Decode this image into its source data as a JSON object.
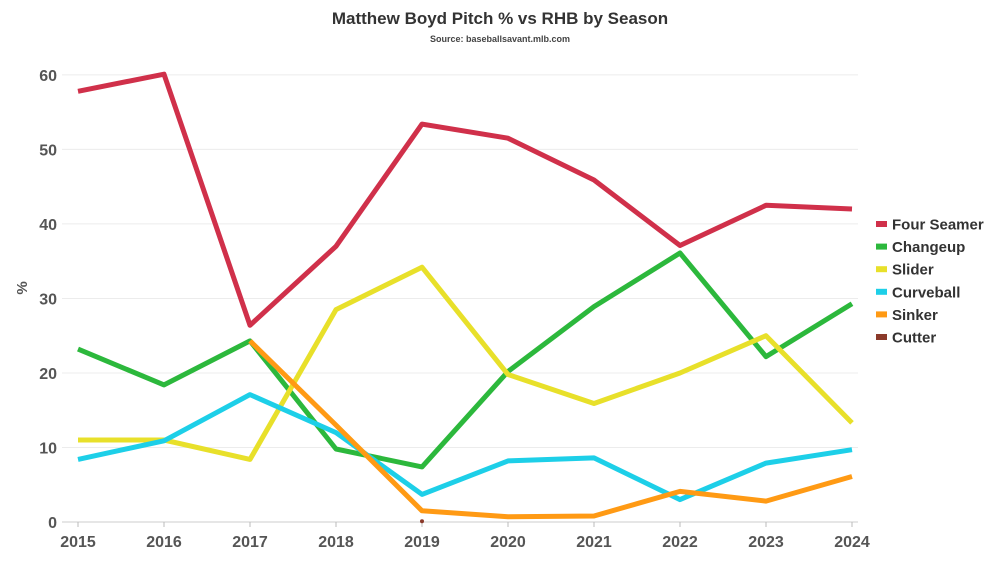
{
  "chart_data": {
    "type": "line",
    "title": "Matthew Boyd Pitch % vs RHB by Season",
    "subtitle": "Source: baseballsavant.mlb.com",
    "xlabel": "",
    "ylabel": "%",
    "x": [
      "2015",
      "2016",
      "2017",
      "2018",
      "2019",
      "2020",
      "2021",
      "2022",
      "2023",
      "2024"
    ],
    "ylim": [
      0,
      62
    ],
    "yticks": [
      0,
      10,
      20,
      30,
      40,
      50,
      60
    ],
    "grid": true,
    "legend": "right",
    "series": [
      {
        "name": "Four Seamer",
        "color": "#d0304a",
        "values": [
          57.8,
          60.1,
          26.4,
          37.0,
          53.4,
          51.5,
          45.9,
          37.1,
          42.5,
          42.0
        ]
      },
      {
        "name": "Changeup",
        "color": "#2cb83c",
        "values": [
          23.2,
          18.4,
          24.3,
          9.8,
          7.4,
          20.2,
          28.9,
          36.1,
          22.2,
          29.3
        ]
      },
      {
        "name": "Slider",
        "color": "#e8e02a",
        "values": [
          11.0,
          11.0,
          8.4,
          28.5,
          34.2,
          19.8,
          15.9,
          20.0,
          25.0,
          13.3
        ]
      },
      {
        "name": "Curveball",
        "color": "#1dcfe8",
        "values": [
          8.4,
          10.9,
          17.1,
          12.0,
          3.7,
          8.2,
          8.6,
          3.0,
          7.9,
          9.7
        ]
      },
      {
        "name": "Sinker",
        "color": "#ff9a14",
        "values": [
          null,
          null,
          24.3,
          13.0,
          1.5,
          0.7,
          0.8,
          4.1,
          2.8,
          6.1
        ]
      },
      {
        "name": "Cutter",
        "color": "#8b3a2a",
        "values": [
          null,
          null,
          null,
          null,
          0.1,
          null,
          null,
          null,
          null,
          null
        ]
      }
    ]
  }
}
